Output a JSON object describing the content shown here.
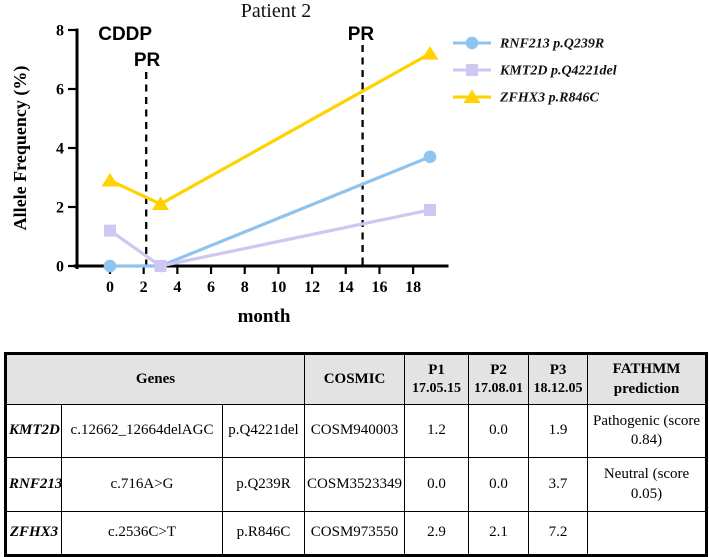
{
  "chart_data": {
    "type": "line",
    "title": "Patient 2",
    "xlabel": "month",
    "ylabel": "Allele Frequency (%)",
    "xlim": [
      0,
      20
    ],
    "ylim": [
      0,
      8
    ],
    "xticks": [
      0,
      2,
      4,
      6,
      8,
      10,
      12,
      14,
      16,
      18
    ],
    "yticks": [
      0,
      2,
      4,
      6,
      8
    ],
    "grid": false,
    "legend_position": "right",
    "x_months": [
      0,
      3,
      19
    ],
    "series": [
      {
        "name": "RNF213 p.Q239R",
        "marker": "circle",
        "color": "#8FC4EF",
        "values": [
          0.0,
          0.0,
          3.7
        ]
      },
      {
        "name": "KMT2D p.Q4221del",
        "marker": "square",
        "color": "#CDC7F1",
        "values": [
          1.2,
          0.0,
          1.9
        ]
      },
      {
        "name": "ZFHX3 p.R846C",
        "marker": "triangle",
        "color": "#FFD200",
        "values": [
          2.9,
          2.1,
          7.2
        ]
      }
    ],
    "event_lines": [
      {
        "month": 2.15,
        "from_row": 1,
        "style": "dashed"
      },
      {
        "month": 15,
        "from_row": 0,
        "style": "dashed"
      }
    ],
    "event_labels": [
      {
        "text": "CDDP",
        "month": 0.9,
        "row": 0
      },
      {
        "text": "PR",
        "month": 2.2,
        "row": 1
      },
      {
        "text": "PR",
        "month": 14.9,
        "row": 0
      }
    ]
  },
  "table": {
    "header": {
      "genes": "Genes",
      "cosmic": "COSMIC",
      "p1_line1": "P1",
      "p1_line2": "17.05.15",
      "p2_line1": "P2",
      "p2_line2": "17.08.01",
      "p3_line1": "P3",
      "p3_line2": "18.12.05",
      "fathmm_line1": "FATHMM",
      "fathmm_line2": "prediction"
    },
    "rows": [
      {
        "gene": "KMT2D",
        "cdna": "c.12662_12664delAGC",
        "protein": "p.Q4221del",
        "cosmic": "COSM940003",
        "p1": "1.2",
        "p2": "0.0",
        "p3": "1.9",
        "fathmm": "Pathogenic (score 0.84)"
      },
      {
        "gene": "RNF213",
        "cdna": "c.716A>G",
        "protein": "p.Q239R",
        "cosmic": "COSM3523349",
        "p1": "0.0",
        "p2": "0.0",
        "p3": "3.7",
        "fathmm": "Neutral (score 0.05)"
      },
      {
        "gene": "ZFHX3",
        "cdna": "c.2536C>T",
        "protein": "p.R846C",
        "cosmic": "COSM973550",
        "p1": "2.9",
        "p2": "2.1",
        "p3": "7.2",
        "fathmm": ""
      }
    ]
  }
}
